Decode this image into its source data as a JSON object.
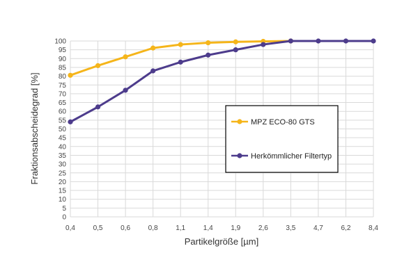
{
  "chart_data": {
    "type": "line",
    "categories": [
      "0,4",
      "0,5",
      "0,6",
      "0,8",
      "1,1",
      "1,4",
      "1,9",
      "2,6",
      "3,5",
      "4,7",
      "6,2",
      "8,4"
    ],
    "series": [
      {
        "name": "MPZ ECO-80 GTS",
        "color": "#f5b51a",
        "values": [
          80.5,
          86,
          91,
          96,
          98,
          99,
          99.5,
          99.8,
          100,
          null,
          null,
          null
        ]
      },
      {
        "name": "Herkömmlicher Filtertyp",
        "color": "#4d3c8c",
        "values": [
          54,
          62.5,
          72,
          83,
          88,
          92,
          95,
          98,
          100,
          100,
          100,
          100
        ]
      }
    ],
    "xlabel": "Partikelgröße [µm]",
    "ylabel": "Fraktionsabscheidegrad [%]",
    "ylim": [
      0,
      100
    ],
    "yticks": [
      0,
      5,
      10,
      15,
      20,
      25,
      30,
      35,
      40,
      45,
      50,
      55,
      60,
      65,
      70,
      75,
      80,
      85,
      90,
      95,
      100
    ],
    "grid": true,
    "legend_placement": "right"
  }
}
